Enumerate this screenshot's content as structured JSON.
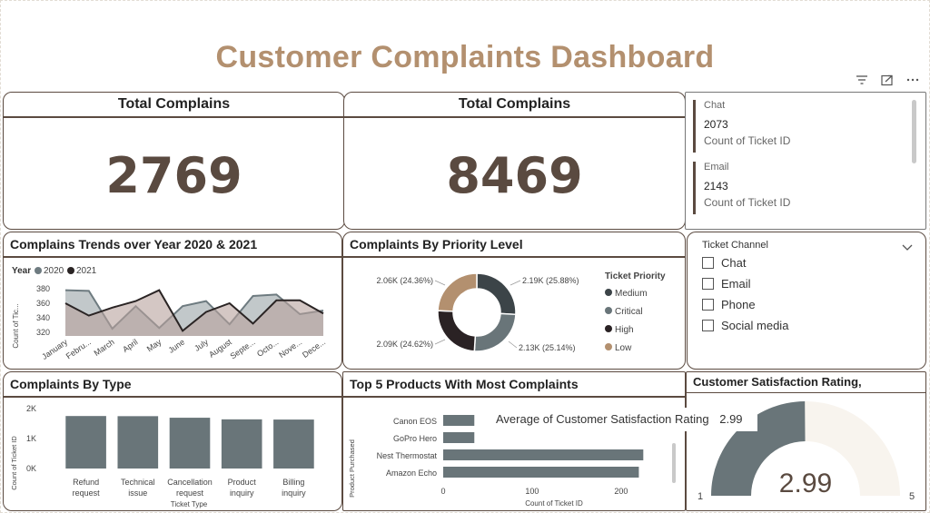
{
  "title": "Customer Complaints Dashboard",
  "kpi1": {
    "label": "Total Complains",
    "value": "2769"
  },
  "kpi2": {
    "label": "Total Complains",
    "value": "8469"
  },
  "cards": [
    {
      "label": "Chat",
      "value": "2073",
      "sub": "Count of Ticket ID"
    },
    {
      "label": "Email",
      "value": "2143",
      "sub": "Count of Ticket ID"
    }
  ],
  "trend": {
    "title": "Complains Trends over Year 2020 & 2021",
    "legend_title": "Year",
    "ylabel": "Count of Tic...",
    "colors": {
      "2020": "#6e7b80",
      "2021": "#2a2424"
    }
  },
  "priority": {
    "title": "Complaints By Priority Level",
    "legend_title": "Ticket Priority",
    "labels": {
      "tl": "2.06K (24.36%)",
      "tr": "2.19K (25.88%)",
      "bl": "2.09K (24.62%)",
      "br": "2.13K (25.14%)"
    },
    "colors": {
      "Medium": "#3c4448",
      "Critical": "#697579",
      "High": "#2a2224",
      "Low": "#b3906f"
    }
  },
  "channel": {
    "title": "Ticket Channel",
    "items": [
      "Chat",
      "Email",
      "Phone",
      "Social media"
    ]
  },
  "bytype": {
    "title": "Complaints By Type",
    "ylabel": "Count of Ticket ID",
    "xlabel": "Ticket Type",
    "category_lines": [
      [
        "Refund",
        "request"
      ],
      [
        "Technical",
        "issue"
      ],
      [
        "Cancellation",
        "request"
      ],
      [
        "Product",
        "inquiry"
      ],
      [
        "Billing",
        "inquiry"
      ]
    ]
  },
  "products": {
    "title": "Top 5 Products With Most Complaints",
    "ylabel": "Product Purchased",
    "xlabel": "Count of Ticket ID"
  },
  "satisfaction": {
    "title": "Customer Satisfaction Rating,",
    "tooltip_label": "Average of Customer Satisfaction Rating",
    "tooltip_value": "2.99",
    "value_text": "2.99",
    "min_label": "1",
    "max_label": "5",
    "value": 2.99,
    "min": 1,
    "max": 5,
    "fill_color": "#697579",
    "track_color": "#f8f4ee"
  },
  "chart_data": [
    {
      "type": "area",
      "title": "Complains Trends over Year 2020 & 2021",
      "categories": [
        "January",
        "Febru...",
        "March",
        "April",
        "May",
        "June",
        "July",
        "August",
        "Septe...",
        "Octo...",
        "Nove...",
        "Dece..."
      ],
      "series": [
        {
          "name": "2020",
          "values": [
            378,
            377,
            325,
            356,
            326,
            356,
            363,
            331,
            370,
            372,
            345,
            350
          ]
        },
        {
          "name": "2021",
          "values": [
            360,
            343,
            354,
            363,
            378,
            322,
            348,
            360,
            332,
            364,
            364,
            346
          ]
        }
      ],
      "xlabel": "",
      "ylabel": "Count of Tic...",
      "yticks": [
        320,
        340,
        360,
        380
      ],
      "ylim": [
        315,
        385
      ],
      "legend": "top-left"
    },
    {
      "type": "pie",
      "title": "Complaints By Priority Level",
      "categories": [
        "Medium",
        "Critical",
        "High",
        "Low"
      ],
      "values": [
        2190,
        2130,
        2090,
        2060
      ],
      "legend": "right"
    },
    {
      "type": "bar",
      "title": "Complaints By Type",
      "categories": [
        "Refund request",
        "Technical issue",
        "Cancellation request",
        "Product inquiry",
        "Billing inquiry"
      ],
      "values": [
        1752,
        1747,
        1695,
        1641,
        1634
      ],
      "xlabel": "Ticket Type",
      "ylabel": "Count of Ticket ID",
      "yticks": [
        "0K",
        "1K",
        "2K"
      ],
      "ylim": [
        0,
        2000
      ]
    },
    {
      "type": "bar",
      "orientation": "horizontal",
      "title": "Top 5 Products With Most Complaints",
      "categories": [
        "Canon EOS",
        "GoPro Hero",
        "Nest Thermostat",
        "Amazon Echo"
      ],
      "values": [
        35,
        35,
        225,
        220
      ],
      "xlabel": "Count of Ticket ID",
      "ylabel": "Product Purchased",
      "xticks": [
        0,
        100,
        200
      ],
      "xlim": [
        0,
        240
      ]
    }
  ]
}
